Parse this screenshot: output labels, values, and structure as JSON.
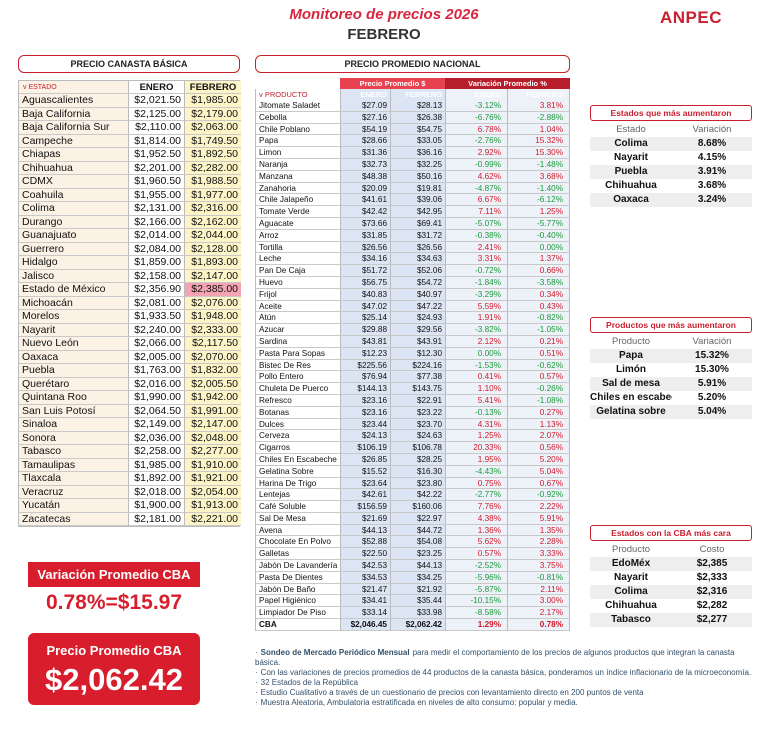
{
  "header": {
    "title": "Monitoreo de precios 2026",
    "subtitle": "FEBRERO",
    "logo": "ANPEC"
  },
  "basket_table": {
    "title": "PRECIO CANASTA BÁSICA",
    "columns": [
      "v ESTADO",
      "ENERO",
      "FEBRERO"
    ],
    "highlight_row": 14,
    "rows": [
      [
        "Aguascalientes",
        "$2,021.50",
        "$1,985.00"
      ],
      [
        "Baja California",
        "$2,125.00",
        "$2,179.00"
      ],
      [
        "Baja California Sur",
        "$2,110.00",
        "$2,063.00"
      ],
      [
        "Campeche",
        "$1,814.00",
        "$1,749.50"
      ],
      [
        "Chiapas",
        "$1,952.50",
        "$1,892.50"
      ],
      [
        "Chihuahua",
        "$2,201.00",
        "$2,282.00"
      ],
      [
        "CDMX",
        "$1,960.50",
        "$1,988.50"
      ],
      [
        "Coahuila",
        "$1,955.00",
        "$1,977.00"
      ],
      [
        "Colima",
        "$2,131.00",
        "$2,316.00"
      ],
      [
        "Durango",
        "$2,166.00",
        "$2,162.00"
      ],
      [
        "Guanajuato",
        "$2,014.00",
        "$2,044.00"
      ],
      [
        "Guerrero",
        "$2,084.00",
        "$2,128.00"
      ],
      [
        "Hidalgo",
        "$1,859.00",
        "$1,893.00"
      ],
      [
        "Jalisco",
        "$2,158.00",
        "$2,147.00"
      ],
      [
        "Estado de México",
        "$2,356.90",
        "$2,385.00"
      ],
      [
        "Michoacán",
        "$2,081.00",
        "$2,076.00"
      ],
      [
        "Morelos",
        "$1,933.50",
        "$1,948.00"
      ],
      [
        "Nayarit",
        "$2,240.00",
        "$2,333.00"
      ],
      [
        "Nuevo León",
        "$2,066.00",
        "$2,117.50"
      ],
      [
        "Oaxaca",
        "$2,005.00",
        "$2,070.00"
      ],
      [
        "Puebla",
        "$1,763.00",
        "$1,832.00"
      ],
      [
        "Querétaro",
        "$2,016.00",
        "$2,005.50"
      ],
      [
        "Quintana Roo",
        "$1,990.00",
        "$1,942.00"
      ],
      [
        "San Luis Potosí",
        "$2,064.50",
        "$1,991.00"
      ],
      [
        "Sinaloa",
        "$2,149.00",
        "$2,147.00"
      ],
      [
        "Sonora",
        "$2,036.00",
        "$2,048.00"
      ],
      [
        "Tabasco",
        "$2,258.00",
        "$2,277.00"
      ],
      [
        "Tamaulipas",
        "$1,985.00",
        "$1,910.00"
      ],
      [
        "Tlaxcala",
        "$1,892.00",
        "$1,921.00"
      ],
      [
        "Veracruz",
        "$2,018.00",
        "$2,054.00"
      ],
      [
        "Yucatán",
        "$1,900.00",
        "$1,913.00"
      ],
      [
        "Zacatecas",
        "$2,181.00",
        "$2,221.00"
      ]
    ]
  },
  "national_table": {
    "title": "PRECIO PROMEDIO NACIONAL",
    "groups": [
      "Precio Promedio $",
      "Variación Promedio %"
    ],
    "columns": [
      "v PRODUCTO",
      "ENERO",
      "FEBRERO",
      "ENERO",
      "FEBRERO"
    ],
    "rows": [
      [
        "Jitomate Saladet",
        "$27.09",
        "$28.13",
        "-3.12%",
        "3.81%"
      ],
      [
        "Cebolla",
        "$27.16",
        "$26.38",
        "-6.76%",
        "-2.88%"
      ],
      [
        "Chile Poblano",
        "$54.19",
        "$54.75",
        "6.78%",
        "1.04%"
      ],
      [
        "Papa",
        "$28.66",
        "$33.05",
        "-2.76%",
        "15.32%"
      ],
      [
        "Limon",
        "$31.36",
        "$36.16",
        "2.92%",
        "15.30%"
      ],
      [
        "Naranja",
        "$32.73",
        "$32.25",
        "-0.99%",
        "-1.48%"
      ],
      [
        "Manzana",
        "$48.38",
        "$50.16",
        "4.62%",
        "3.68%"
      ],
      [
        "Zanahoria",
        "$20.09",
        "$19.81",
        "-4.87%",
        "-1.40%"
      ],
      [
        "Chile Jalapeño",
        "$41.61",
        "$39.06",
        "6.67%",
        "-6.12%"
      ],
      [
        "Tomate Verde",
        "$42.42",
        "$42.95",
        "7.11%",
        "1.25%"
      ],
      [
        "Aguacate",
        "$73.66",
        "$69.41",
        "-5.07%",
        "-5.77%"
      ],
      [
        "Arroz",
        "$31.85",
        "$31.72",
        "-0.38%",
        "-0.40%"
      ],
      [
        "Tortilla",
        "$26.56",
        "$26.56",
        "2.41%",
        "0.00%"
      ],
      [
        "Leche",
        "$34.16",
        "$34.63",
        "3.31%",
        "1.37%"
      ],
      [
        "Pan De Caja",
        "$51.72",
        "$52.06",
        "-0.72%",
        "0.66%"
      ],
      [
        "Huevo",
        "$56.75",
        "$54.72",
        "-1.84%",
        "-3.58%"
      ],
      [
        "Frijol",
        "$40.83",
        "$40.97",
        "-3.29%",
        "0.34%"
      ],
      [
        "Aceite",
        "$47.02",
        "$47.22",
        "5.59%",
        "0.43%"
      ],
      [
        "Atún",
        "$25.14",
        "$24.93",
        "1.91%",
        "-0.82%"
      ],
      [
        "Azucar",
        "$29.88",
        "$29.56",
        "-3.82%",
        "-1.05%"
      ],
      [
        "Sardina",
        "$43.81",
        "$43.91",
        "2.12%",
        "0.21%"
      ],
      [
        "Pasta Para Sopas",
        "$12.23",
        "$12.30",
        "0.00%",
        "0.51%"
      ],
      [
        "Bistec De Res",
        "$225.56",
        "$224.16",
        "-1.53%",
        "-0.62%"
      ],
      [
        "Pollo Entero",
        "$76.94",
        "$77.38",
        "0.41%",
        "0.57%"
      ],
      [
        "Chuleta De Puerco",
        "$144.13",
        "$143.75",
        "1.10%",
        "-0.26%"
      ],
      [
        "Refresco",
        "$23.16",
        "$22.91",
        "5.41%",
        "-1.08%"
      ],
      [
        "Botanas",
        "$23.16",
        "$23.22",
        "-0.13%",
        "0.27%"
      ],
      [
        "Dulces",
        "$23.44",
        "$23.70",
        "4.31%",
        "1.13%"
      ],
      [
        "Cerveza",
        "$24.13",
        "$24.63",
        "1.25%",
        "2.07%"
      ],
      [
        "Cigarros",
        "$106.19",
        "$106.78",
        "20.33%",
        "0.56%"
      ],
      [
        "Chiles En Escabeche",
        "$26.85",
        "$28.25",
        "1.95%",
        "5.20%"
      ],
      [
        "Gelatina Sobre",
        "$15.52",
        "$16.30",
        "-4.43%",
        "5.04%"
      ],
      [
        "Harina De Trigo",
        "$23.64",
        "$23.80",
        "0.75%",
        "0.67%"
      ],
      [
        "Lentejas",
        "$42.61",
        "$42.22",
        "-2.77%",
        "-0.92%"
      ],
      [
        "Café Soluble",
        "$156.59",
        "$160.06",
        "7.76%",
        "2.22%"
      ],
      [
        "Sal De Mesa",
        "$21.69",
        "$22.97",
        "4.38%",
        "5.91%"
      ],
      [
        "Avena",
        "$44.13",
        "$44.72",
        "1.36%",
        "1.35%"
      ],
      [
        "Chocolate En Polvo",
        "$52.88",
        "$54.08",
        "5.62%",
        "2.28%"
      ],
      [
        "Galletas",
        "$22.50",
        "$23.25",
        "0.57%",
        "3.33%"
      ],
      [
        "Jabón De Lavandería",
        "$42.53",
        "$44.13",
        "-2.52%",
        "3.75%"
      ],
      [
        "Pasta De Dientes",
        "$34.53",
        "$34.25",
        "-5.96%",
        "-0.81%"
      ],
      [
        "Jabón De Baño",
        "$21.47",
        "$21.92",
        "-5.87%",
        "2.11%"
      ],
      [
        "Papel Higiénico",
        "$34.41",
        "$35.44",
        "-10.15%",
        "3.00%"
      ],
      [
        "Limpiador De Piso",
        "$33.14",
        "$33.98",
        "-8.58%",
        "2.17%"
      ],
      [
        "CBA",
        "$2,046.45",
        "$2,062.42",
        "1.29%",
        "0.78%"
      ]
    ]
  },
  "side_boxes": [
    {
      "title": "Estados que más aumentaron",
      "columns": [
        "Estado",
        "Variación"
      ],
      "rows": [
        [
          "Colima",
          "8.68%"
        ],
        [
          "Nayarit",
          "4.15%"
        ],
        [
          "Puebla",
          "3.91%"
        ],
        [
          "Chihuahua",
          "3.68%"
        ],
        [
          "Oaxaca",
          "3.24%"
        ]
      ]
    },
    {
      "title": "Productos que más aumentaron",
      "columns": [
        "Producto",
        "Variación"
      ],
      "rows": [
        [
          "Papa",
          "15.32%"
        ],
        [
          "Limón",
          "15.30%"
        ],
        [
          "Sal de mesa",
          "5.91%"
        ],
        [
          "Chiles en escabeche",
          "5.20%"
        ],
        [
          "Gelatina sobre",
          "5.04%"
        ]
      ]
    },
    {
      "title": "Estados con la CBA más cara",
      "columns": [
        "Producto",
        "Costo"
      ],
      "rows": [
        [
          "EdoMéx",
          "$2,385"
        ],
        [
          "Nayarit",
          "$2,333"
        ],
        [
          "Colima",
          "$2,316"
        ],
        [
          "Chihuahua",
          "$2,282"
        ],
        [
          "Tabasco",
          "$2,277"
        ]
      ]
    }
  ],
  "summary": {
    "variation_label": "Variación Promedio CBA",
    "variation_value": "0.78%=$15.97",
    "price_label": "Precio Promedio CBA",
    "price_value": "$2,062.42"
  },
  "notes": [
    {
      "strong": "Sondeo de Mercado Periódico Mensual",
      "text": "para medir el comportamiento de los precios de algunos productos que integran la canasta básica."
    },
    {
      "text": "Con las variaciones de precios promedios de 44 productos de la canasta básica, ponderamos un índice inflacionario de la microeconomía."
    },
    {
      "text": "32 Estados de la República"
    },
    {
      "text": "Estudio Cualitativo a través de un cuestionario de precios con levantamiento directo en 200 puntos de venta"
    },
    {
      "text": "Muestra Aleatoria, Ambulatoria estratificada en niveles de alto consumo: popular y media."
    }
  ]
}
